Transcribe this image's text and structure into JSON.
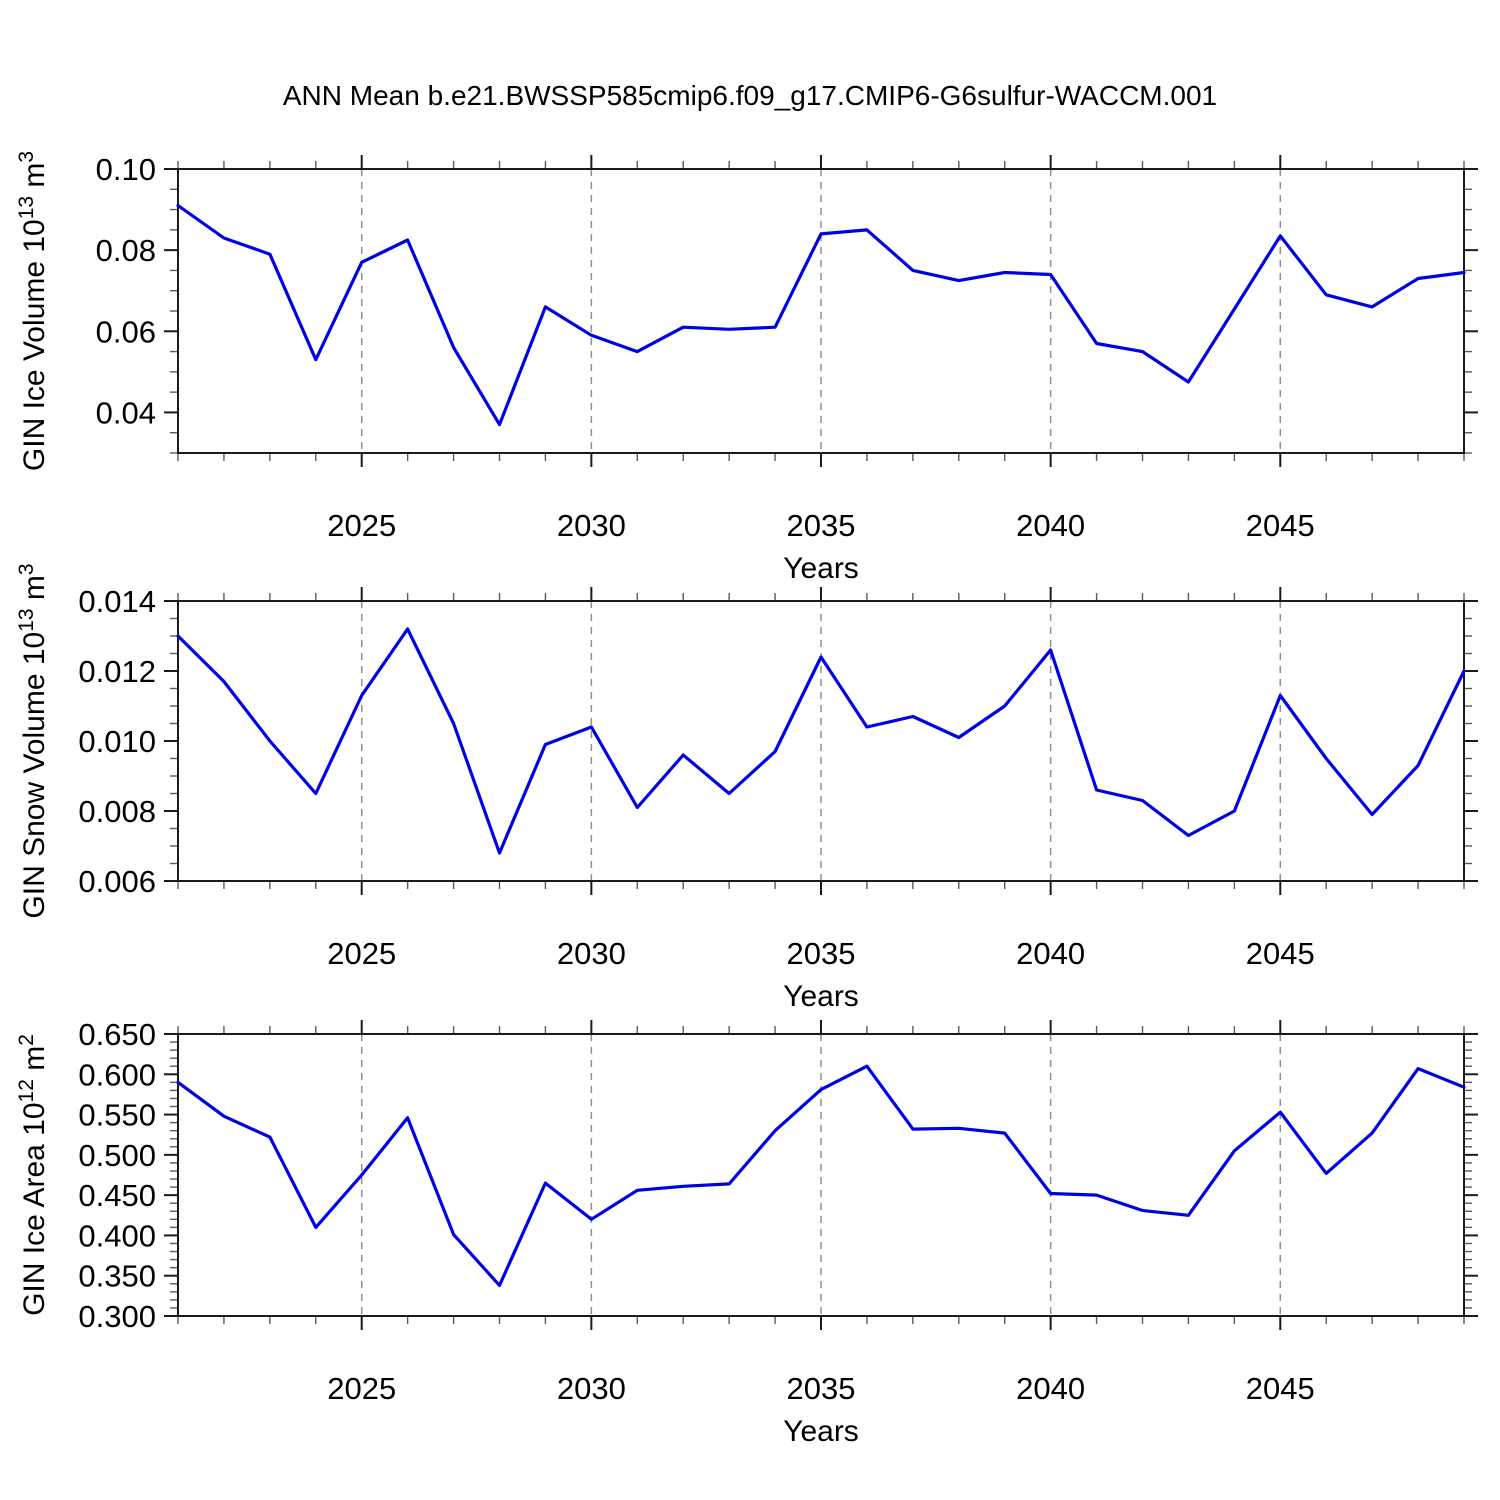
{
  "title": "ANN Mean b.e21.BWSSP585cmip6.f09_g17.CMIP6-G6sulfur-WACCM.001",
  "colors": {
    "background": "#ffffff",
    "line": "#0000e6",
    "frame": "#1a1a1a",
    "major_tick": "#1a1a1a",
    "minor_tick": "#5a5a5a",
    "grid": "#909090",
    "text": "#000000"
  },
  "x_axis": {
    "label": "Years",
    "min": 2021,
    "max": 2049,
    "minor_step": 1,
    "major_ticks": [
      2025,
      2030,
      2035,
      2040,
      2045
    ],
    "major_tick_labels": [
      "2025",
      "2030",
      "2035",
      "2040",
      "2045"
    ],
    "gridlines_dashed": true
  },
  "chart_data": [
    {
      "type": "line",
      "name": "gin-ice-volume",
      "ylabel_text": "GIN Ice Volume 10^13 m^3",
      "ylabel_segments": [
        {
          "t": "GIN Ice Volume 10"
        },
        {
          "t": "13",
          "sup": true
        },
        {
          "t": " m"
        },
        {
          "t": "3",
          "sup": true
        }
      ],
      "xlabel": "Years",
      "ylim": [
        0.03,
        0.1
      ],
      "y_major_ticks": [
        0.04,
        0.06,
        0.08,
        0.1
      ],
      "y_major_tick_labels": [
        "0.04",
        "0.06",
        "0.08",
        "0.10"
      ],
      "y_minor_step": 0.005,
      "x": [
        2021,
        2022,
        2023,
        2024,
        2025,
        2026,
        2027,
        2028,
        2029,
        2030,
        2031,
        2032,
        2033,
        2034,
        2035,
        2036,
        2037,
        2038,
        2039,
        2040,
        2041,
        2042,
        2043,
        2044,
        2045,
        2046,
        2047,
        2048,
        2049
      ],
      "values": [
        0.091,
        0.083,
        0.079,
        0.053,
        0.077,
        0.0825,
        0.056,
        0.037,
        0.066,
        0.059,
        0.055,
        0.061,
        0.0605,
        0.061,
        0.084,
        0.085,
        0.075,
        0.0725,
        0.0745,
        0.074,
        0.057,
        0.055,
        0.0475,
        0.0655,
        0.0835,
        0.069,
        0.066,
        0.073,
        0.0745
      ]
    },
    {
      "type": "line",
      "name": "gin-snow-volume",
      "ylabel_text": "GIN Snow Volume 10^13 m^3",
      "ylabel_segments": [
        {
          "t": "GIN Snow Volume 10"
        },
        {
          "t": "13",
          "sup": true
        },
        {
          "t": " m"
        },
        {
          "t": "3",
          "sup": true
        }
      ],
      "xlabel": "Years",
      "ylim": [
        0.006,
        0.014
      ],
      "y_major_ticks": [
        0.006,
        0.008,
        0.01,
        0.012,
        0.014
      ],
      "y_major_tick_labels": [
        "0.006",
        "0.008",
        "0.010",
        "0.012",
        "0.014"
      ],
      "y_minor_step": 0.0005,
      "x": [
        2021,
        2022,
        2023,
        2024,
        2025,
        2026,
        2027,
        2028,
        2029,
        2030,
        2031,
        2032,
        2033,
        2034,
        2035,
        2036,
        2037,
        2038,
        2039,
        2040,
        2041,
        2042,
        2043,
        2044,
        2045,
        2046,
        2047,
        2048,
        2049
      ],
      "values": [
        0.013,
        0.0117,
        0.01,
        0.0085,
        0.0113,
        0.0132,
        0.0105,
        0.0068,
        0.0099,
        0.0104,
        0.0081,
        0.0096,
        0.0085,
        0.0097,
        0.0124,
        0.0104,
        0.0107,
        0.0101,
        0.011,
        0.0126,
        0.0086,
        0.0083,
        0.0073,
        0.008,
        0.0113,
        0.0095,
        0.0079,
        0.0093,
        0.012
      ]
    },
    {
      "type": "line",
      "name": "gin-ice-area",
      "ylabel_text": "GIN Ice Area 10^12 m^2",
      "ylabel_segments": [
        {
          "t": "GIN Ice Area 10"
        },
        {
          "t": "12",
          "sup": true
        },
        {
          "t": " m"
        },
        {
          "t": "2",
          "sup": true
        }
      ],
      "xlabel": "Years",
      "ylim": [
        0.3,
        0.65
      ],
      "y_major_ticks": [
        0.3,
        0.35,
        0.4,
        0.45,
        0.5,
        0.55,
        0.6,
        0.65
      ],
      "y_major_tick_labels": [
        "0.300",
        "0.350",
        "0.400",
        "0.450",
        "0.500",
        "0.550",
        "0.600",
        "0.650"
      ],
      "y_minor_step": 0.01,
      "x": [
        2021,
        2022,
        2023,
        2024,
        2025,
        2026,
        2027,
        2028,
        2029,
        2030,
        2031,
        2032,
        2033,
        2034,
        2035,
        2036,
        2037,
        2038,
        2039,
        2040,
        2041,
        2042,
        2043,
        2044,
        2045,
        2046,
        2047,
        2048,
        2049
      ],
      "values": [
        0.59,
        0.548,
        0.522,
        0.41,
        0.475,
        0.546,
        0.401,
        0.338,
        0.465,
        0.42,
        0.456,
        0.461,
        0.464,
        0.53,
        0.581,
        0.61,
        0.532,
        0.533,
        0.527,
        0.452,
        0.45,
        0.431,
        0.425,
        0.505,
        0.553,
        0.477,
        0.527,
        0.607,
        0.584
      ]
    }
  ]
}
